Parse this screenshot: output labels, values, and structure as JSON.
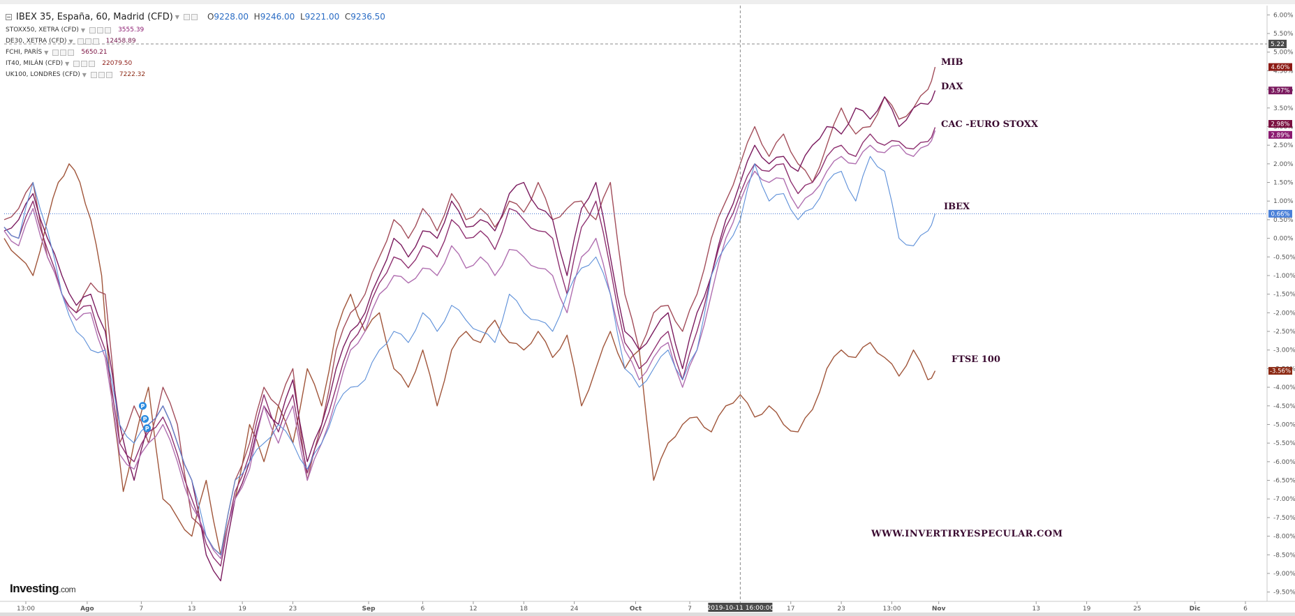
{
  "legend": {
    "main": {
      "name": "IBEX 35, España, 60, Madrid (CFD)",
      "o_label": "O",
      "o": "9228.00",
      "h_label": "H",
      "h": "9246.00",
      "l_label": "L",
      "l": "9221.00",
      "c_label": "C",
      "c": "9236.50"
    },
    "items": [
      {
        "name": "STOXX50, XETRA (CFD)",
        "value": "3555.39",
        "color": "#8b1a70"
      },
      {
        "name": "DE30, XETRA (CFD)",
        "value": "12458.89",
        "color": "#6e1347"
      },
      {
        "name": "FCHI, PARÍS",
        "value": "5650.21",
        "color": "#7a1040"
      },
      {
        "name": "IT40, MILÁN (CFD)",
        "value": "22079.50",
        "color": "#8c1a14"
      },
      {
        "name": "UK100, LONDRES (CFD)",
        "value": "7222.32",
        "color": "#8c2a14"
      }
    ]
  },
  "annotations": {
    "mib": "MIB",
    "dax": "DAX",
    "cac": "CAC -EURO STOXX",
    "ibex": "IBEX",
    "ftse": "FTSE 100",
    "website": "WWW.INVERTIRYESPECULAR.COM"
  },
  "logo": {
    "brand": "Investing",
    "suffix": ".com"
  },
  "crosshair": {
    "x_label": "2019-10-11 16:00:00",
    "y_label": "5.22"
  },
  "colors": {
    "ibex": "#5b8ed8",
    "stoxx50": "#b06fb0",
    "dax": "#7a1a5e",
    "cac": "#8e3070",
    "mib": "#a24d5a",
    "ftse": "#a0553a",
    "price_line": "#3a6fd0"
  },
  "chart_data": {
    "type": "line",
    "y_unit": "%",
    "ylim": [
      -9.75,
      6.25
    ],
    "y_ticks": [
      "6.00%",
      "5.50%",
      "5.00%",
      "4.50%",
      "4.00%",
      "3.50%",
      "3.00%",
      "2.50%",
      "2.00%",
      "1.50%",
      "1.00%",
      "0.50%",
      "0.00%",
      "-0.50%",
      "-1.00%",
      "-1.50%",
      "-2.00%",
      "-2.50%",
      "-3.00%",
      "-3.50%",
      "-4.00%",
      "-4.50%",
      "-5.00%",
      "-5.50%",
      "-6.00%",
      "-6.50%",
      "-7.00%",
      "-7.50%",
      "-8.00%",
      "-8.50%",
      "-9.00%",
      "-9.50%"
    ],
    "x_ticks": [
      {
        "label": "13:00",
        "t": 0.3
      },
      {
        "label": "Ago",
        "t": 1.15,
        "bold": true
      },
      {
        "label": "7",
        "t": 1.9
      },
      {
        "label": "13",
        "t": 2.6
      },
      {
        "label": "19",
        "t": 3.3
      },
      {
        "label": "23",
        "t": 4.0
      },
      {
        "label": "Sep",
        "t": 5.05,
        "bold": true
      },
      {
        "label": "6",
        "t": 5.8
      },
      {
        "label": "12",
        "t": 6.5
      },
      {
        "label": "18",
        "t": 7.2
      },
      {
        "label": "24",
        "t": 7.9
      },
      {
        "label": "Oct",
        "t": 8.75,
        "bold": true
      },
      {
        "label": "7",
        "t": 9.5
      },
      {
        "label": "11",
        "t": 10.2
      },
      {
        "label": "17",
        "t": 10.9
      },
      {
        "label": "23",
        "t": 11.6
      },
      {
        "label": "13:00",
        "t": 12.3
      },
      {
        "label": "Nov",
        "t": 12.95,
        "bold": true
      },
      {
        "label": "13",
        "t": 14.3
      },
      {
        "label": "19",
        "t": 15.0
      },
      {
        "label": "25",
        "t": 15.7
      },
      {
        "label": "Dic",
        "t": 16.5,
        "bold": true
      },
      {
        "label": "6",
        "t": 17.2
      }
    ],
    "xlim": [
      0,
      17.5
    ],
    "series": [
      {
        "name": "UK100, LONDRES (CFD)",
        "key": "ftse",
        "last": -3.56,
        "last_label": "-3.56%",
        "x": [
          0,
          0.2,
          0.4,
          0.6,
          0.75,
          0.9,
          1.05,
          1.2,
          1.35,
          1.5,
          1.65,
          1.8,
          2.0,
          2.2,
          2.4,
          2.6,
          2.8,
          3.0,
          3.2,
          3.4,
          3.6,
          3.8,
          4.0,
          4.2,
          4.4,
          4.6,
          4.8,
          5.0,
          5.2,
          5.4,
          5.6,
          5.8,
          6.0,
          6.2,
          6.4,
          6.6,
          6.8,
          7.0,
          7.2,
          7.4,
          7.6,
          7.8,
          8.0,
          8.2,
          8.4,
          8.6,
          8.8,
          9.0,
          9.2,
          9.4,
          9.6,
          9.8,
          10.0,
          10.2,
          10.4,
          10.6,
          10.8,
          11.0,
          11.2,
          11.4,
          11.6,
          11.8,
          12.0,
          12.2,
          12.4,
          12.6,
          12.8,
          12.9
        ],
        "y": [
          0,
          -0.5,
          -1.0,
          0.5,
          1.5,
          2.0,
          1.5,
          0.5,
          -1.0,
          -4.5,
          -6.8,
          -5.5,
          -4.0,
          -7.0,
          -7.5,
          -8.0,
          -6.5,
          -8.5,
          -7.0,
          -5.0,
          -6.0,
          -4.5,
          -5.5,
          -3.5,
          -4.5,
          -2.5,
          -1.5,
          -2.5,
          -2.0,
          -3.5,
          -4.0,
          -3.0,
          -4.5,
          -3.0,
          -2.5,
          -2.8,
          -2.2,
          -2.8,
          -3.0,
          -2.5,
          -3.2,
          -2.6,
          -4.5,
          -3.5,
          -2.5,
          -3.5,
          -3.0,
          -6.5,
          -5.5,
          -5.0,
          -4.8,
          -5.2,
          -4.5,
          -4.2,
          -4.8,
          -4.5,
          -5.0,
          -5.2,
          -4.6,
          -3.5,
          -3.0,
          -3.2,
          -2.8,
          -3.2,
          -3.7,
          -3.0,
          -3.8,
          -3.56
        ]
      },
      {
        "name": "IT40, MILÁN (CFD)",
        "key": "mib",
        "last": 4.6,
        "last_label": "4.60%",
        "x": [
          0,
          0.2,
          0.4,
          0.6,
          0.8,
          1.0,
          1.2,
          1.4,
          1.6,
          1.8,
          2.0,
          2.2,
          2.4,
          2.6,
          2.8,
          3.0,
          3.2,
          3.4,
          3.6,
          3.8,
          4.0,
          4.2,
          4.4,
          4.6,
          4.8,
          5.0,
          5.2,
          5.4,
          5.6,
          5.8,
          6.0,
          6.2,
          6.4,
          6.6,
          6.8,
          7.0,
          7.2,
          7.4,
          7.6,
          7.8,
          8.0,
          8.2,
          8.4,
          8.6,
          8.8,
          9.0,
          9.2,
          9.4,
          9.6,
          9.8,
          10.0,
          10.2,
          10.4,
          10.6,
          10.8,
          11.0,
          11.2,
          11.4,
          11.6,
          11.8,
          12.0,
          12.2,
          12.4,
          12.6,
          12.8,
          12.9
        ],
        "y": [
          0.5,
          0.8,
          1.5,
          -0.5,
          -1.5,
          -2.0,
          -1.2,
          -1.5,
          -5.5,
          -4.5,
          -5.5,
          -4.0,
          -5.0,
          -7.5,
          -8.0,
          -8.5,
          -6.5,
          -5.5,
          -4.0,
          -4.5,
          -3.5,
          -6.5,
          -5.0,
          -3.0,
          -2.0,
          -1.5,
          -0.5,
          0.5,
          0.0,
          0.8,
          0.2,
          1.2,
          0.5,
          0.8,
          0.3,
          1.0,
          0.7,
          1.5,
          0.5,
          0.8,
          1.0,
          0.5,
          1.5,
          -1.5,
          -3.0,
          -2.0,
          -1.8,
          -2.5,
          -1.5,
          0.0,
          1.0,
          2.0,
          3.0,
          2.2,
          2.8,
          2.0,
          1.5,
          2.5,
          3.5,
          2.8,
          3.0,
          3.8,
          3.2,
          3.5,
          4.0,
          4.6
        ]
      },
      {
        "name": "DE30, XETRA (CFD)",
        "key": "dax",
        "last": 3.97,
        "last_label": "3.97%",
        "x": [
          0,
          0.2,
          0.4,
          0.6,
          0.8,
          1.0,
          1.2,
          1.4,
          1.6,
          1.8,
          2.0,
          2.2,
          2.4,
          2.6,
          2.8,
          3.0,
          3.2,
          3.4,
          3.6,
          3.8,
          4.0,
          4.2,
          4.4,
          4.6,
          4.8,
          5.0,
          5.2,
          5.4,
          5.6,
          5.8,
          6.0,
          6.2,
          6.4,
          6.6,
          6.8,
          7.0,
          7.2,
          7.4,
          7.6,
          7.8,
          8.0,
          8.2,
          8.4,
          8.6,
          8.8,
          9.0,
          9.2,
          9.4,
          9.6,
          9.8,
          10.0,
          10.2,
          10.4,
          10.6,
          10.8,
          11.0,
          11.2,
          11.4,
          11.6,
          11.8,
          12.0,
          12.2,
          12.4,
          12.6,
          12.8,
          12.9
        ],
        "y": [
          0.2,
          0.5,
          1.2,
          0.0,
          -1.0,
          -1.8,
          -1.5,
          -2.5,
          -5.0,
          -6.5,
          -5.0,
          -4.5,
          -5.5,
          -6.5,
          -8.5,
          -9.2,
          -7.0,
          -6.0,
          -4.5,
          -5.0,
          -3.8,
          -6.0,
          -5.0,
          -3.5,
          -2.5,
          -2.0,
          -1.0,
          0.0,
          -0.5,
          0.2,
          0.0,
          1.0,
          0.3,
          0.5,
          0.2,
          1.2,
          1.5,
          0.8,
          0.5,
          -1.0,
          0.8,
          1.5,
          -0.5,
          -2.5,
          -3.0,
          -2.5,
          -2.0,
          -3.5,
          -2.0,
          -1.0,
          0.5,
          1.5,
          2.5,
          2.0,
          2.2,
          1.8,
          2.5,
          3.0,
          2.8,
          3.5,
          3.2,
          3.8,
          3.0,
          3.5,
          3.6,
          3.97
        ]
      },
      {
        "name": "FCHI, PARÍS",
        "key": "cac",
        "last": 2.98,
        "last_label": "2.98%",
        "x": [
          0,
          0.2,
          0.4,
          0.6,
          0.8,
          1.0,
          1.2,
          1.4,
          1.6,
          1.8,
          2.0,
          2.2,
          2.4,
          2.6,
          2.8,
          3.0,
          3.2,
          3.4,
          3.6,
          3.8,
          4.0,
          4.2,
          4.4,
          4.6,
          4.8,
          5.0,
          5.2,
          5.4,
          5.6,
          5.8,
          6.0,
          6.2,
          6.4,
          6.6,
          6.8,
          7.0,
          7.2,
          7.4,
          7.6,
          7.8,
          8.0,
          8.2,
          8.4,
          8.6,
          8.8,
          9.0,
          9.2,
          9.4,
          9.6,
          9.8,
          10.0,
          10.2,
          10.4,
          10.6,
          10.8,
          11.0,
          11.2,
          11.4,
          11.6,
          11.8,
          12.0,
          12.2,
          12.4,
          12.6,
          12.8,
          12.9
        ],
        "y": [
          0.3,
          0.0,
          1.0,
          -0.3,
          -1.5,
          -2.0,
          -1.8,
          -3.0,
          -5.5,
          -6.0,
          -5.2,
          -4.8,
          -5.8,
          -7.0,
          -8.2,
          -8.8,
          -6.8,
          -5.8,
          -4.2,
          -5.2,
          -4.2,
          -6.3,
          -5.2,
          -4.0,
          -2.8,
          -2.2,
          -1.2,
          -0.5,
          -0.8,
          -0.2,
          -0.5,
          0.5,
          0.0,
          0.2,
          -0.3,
          0.8,
          0.5,
          0.2,
          0.0,
          -1.5,
          0.3,
          1.0,
          -0.8,
          -2.8,
          -3.5,
          -3.0,
          -2.5,
          -3.8,
          -2.5,
          -1.0,
          0.3,
          1.2,
          2.0,
          1.8,
          2.0,
          1.2,
          1.5,
          2.2,
          2.5,
          2.2,
          2.8,
          2.5,
          2.6,
          2.4,
          2.6,
          2.98
        ]
      },
      {
        "name": "STOXX50, XETRA (CFD)",
        "key": "stoxx50",
        "last": 2.89,
        "last_label": "2.89%",
        "x": [
          0,
          0.2,
          0.4,
          0.6,
          0.8,
          1.0,
          1.2,
          1.4,
          1.6,
          1.8,
          2.0,
          2.2,
          2.4,
          2.6,
          2.8,
          3.0,
          3.2,
          3.4,
          3.6,
          3.8,
          4.0,
          4.2,
          4.4,
          4.6,
          4.8,
          5.0,
          5.2,
          5.4,
          5.6,
          5.8,
          6.0,
          6.2,
          6.4,
          6.6,
          6.8,
          7.0,
          7.2,
          7.4,
          7.6,
          7.8,
          8.0,
          8.2,
          8.4,
          8.6,
          8.8,
          9.0,
          9.2,
          9.4,
          9.6,
          9.8,
          10.0,
          10.2,
          10.4,
          10.6,
          10.8,
          11.0,
          11.2,
          11.4,
          11.6,
          11.8,
          12.0,
          12.2,
          12.4,
          12.6,
          12.8,
          12.9
        ],
        "y": [
          0.2,
          -0.2,
          0.8,
          -0.5,
          -1.5,
          -2.2,
          -2.0,
          -3.2,
          -5.8,
          -6.2,
          -5.5,
          -5.0,
          -6.0,
          -7.2,
          -8.0,
          -8.6,
          -7.0,
          -6.2,
          -4.5,
          -5.5,
          -4.5,
          -6.5,
          -5.5,
          -4.3,
          -3.0,
          -2.5,
          -1.5,
          -1.0,
          -1.2,
          -0.8,
          -1.0,
          -0.2,
          -0.8,
          -0.5,
          -1.0,
          -0.3,
          -0.5,
          -0.8,
          -1.0,
          -2.0,
          -0.5,
          0.0,
          -1.5,
          -3.0,
          -3.8,
          -3.2,
          -2.8,
          -4.0,
          -3.0,
          -1.5,
          0.0,
          1.0,
          1.8,
          1.5,
          1.6,
          0.8,
          1.2,
          1.8,
          2.2,
          2.0,
          2.5,
          2.3,
          2.5,
          2.2,
          2.5,
          2.89
        ]
      },
      {
        "name": "IBEX 35, España, 60, Madrid (CFD)",
        "key": "ibex",
        "last": 0.66,
        "last_label": "0.66%",
        "x": [
          0,
          0.2,
          0.4,
          0.6,
          0.8,
          1.0,
          1.2,
          1.4,
          1.6,
          1.8,
          2.0,
          2.2,
          2.4,
          2.6,
          2.8,
          3.0,
          3.2,
          3.4,
          3.6,
          3.8,
          4.0,
          4.2,
          4.4,
          4.6,
          4.8,
          5.0,
          5.2,
          5.4,
          5.6,
          5.8,
          6.0,
          6.2,
          6.4,
          6.6,
          6.8,
          7.0,
          7.2,
          7.4,
          7.6,
          7.8,
          8.0,
          8.2,
          8.4,
          8.6,
          8.8,
          9.0,
          9.2,
          9.4,
          9.6,
          9.8,
          10.0,
          10.2,
          10.4,
          10.6,
          10.8,
          11.0,
          11.2,
          11.4,
          11.6,
          11.8,
          12.0,
          12.2,
          12.4,
          12.6,
          12.8,
          12.9
        ],
        "y": [
          0.3,
          0.0,
          1.5,
          0.2,
          -1.5,
          -2.5,
          -3.0,
          -3.0,
          -5.0,
          -5.5,
          -5.0,
          -4.5,
          -5.5,
          -6.5,
          -8.0,
          -8.5,
          -6.5,
          -6.0,
          -5.5,
          -5.0,
          -5.5,
          -6.2,
          -5.5,
          -4.5,
          -4.0,
          -3.8,
          -3.0,
          -2.5,
          -2.8,
          -2.0,
          -2.5,
          -1.8,
          -2.2,
          -2.5,
          -2.8,
          -1.5,
          -2.0,
          -2.2,
          -2.5,
          -1.5,
          -0.8,
          -0.5,
          -1.5,
          -3.5,
          -4.0,
          -3.5,
          -3.0,
          -3.8,
          -3.0,
          -1.0,
          -0.2,
          0.5,
          2.0,
          1.0,
          1.2,
          0.5,
          0.8,
          1.5,
          1.8,
          1.0,
          2.2,
          1.8,
          0.0,
          -0.2,
          0.2,
          0.66
        ]
      }
    ]
  }
}
